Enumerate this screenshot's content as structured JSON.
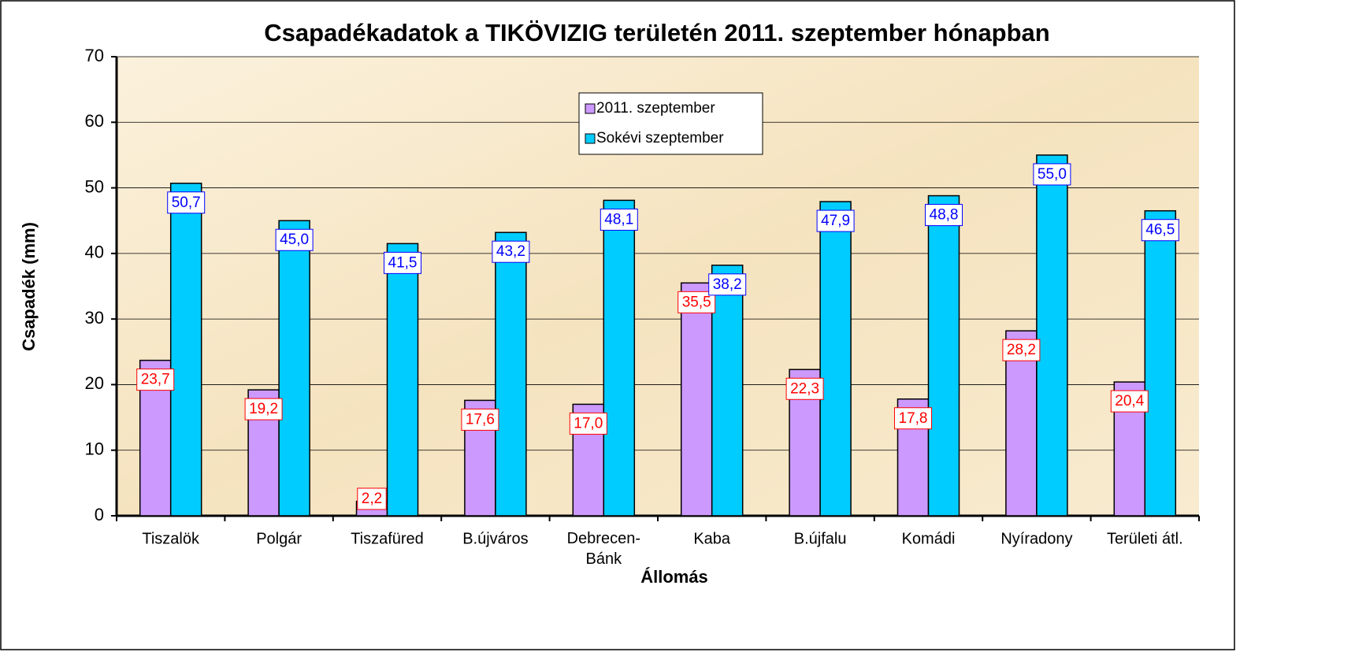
{
  "chart_data": {
    "type": "bar",
    "title": "Csapadékadatok a TIKÖVIZIG területén 2011. szeptember hónapban",
    "y_label": "Csapadék (mm)",
    "x_label": "Állomás",
    "categories": [
      "Tiszalök",
      "Polgár",
      "Tiszafüred",
      "B.újváros",
      "Debrecen-Bánk",
      "Kaba",
      "B.újfalu",
      "Komádi",
      "Nyíradony",
      "Területi átl."
    ],
    "series": [
      {
        "name": "2011. szeptember",
        "color": "#cc99ff",
        "label_color": "#ff0000",
        "values": [
          23.7,
          19.2,
          2.2,
          17.6,
          17.0,
          35.5,
          22.3,
          17.8,
          28.2,
          20.4
        ],
        "value_labels": [
          "23,7",
          "19,2",
          "2,2",
          "17,6",
          "17,0",
          "35,5",
          "22,3",
          "17,8",
          "28,2",
          "20,4"
        ]
      },
      {
        "name": "Sokévi szeptember",
        "color": "#00ccff",
        "label_color": "#0000ff",
        "values": [
          50.7,
          45.0,
          41.5,
          43.2,
          48.1,
          38.2,
          47.9,
          48.8,
          55.0,
          46.5
        ],
        "value_labels": [
          "50,7",
          "45,0",
          "41,5",
          "43,2",
          "48,1",
          "38,2",
          "47,9",
          "48,8",
          "55,0",
          "46,5"
        ]
      }
    ],
    "ylim": [
      0,
      70
    ],
    "yticks": [
      0,
      10,
      20,
      30,
      40,
      50,
      60,
      70
    ],
    "grid": true,
    "legend": "top"
  }
}
